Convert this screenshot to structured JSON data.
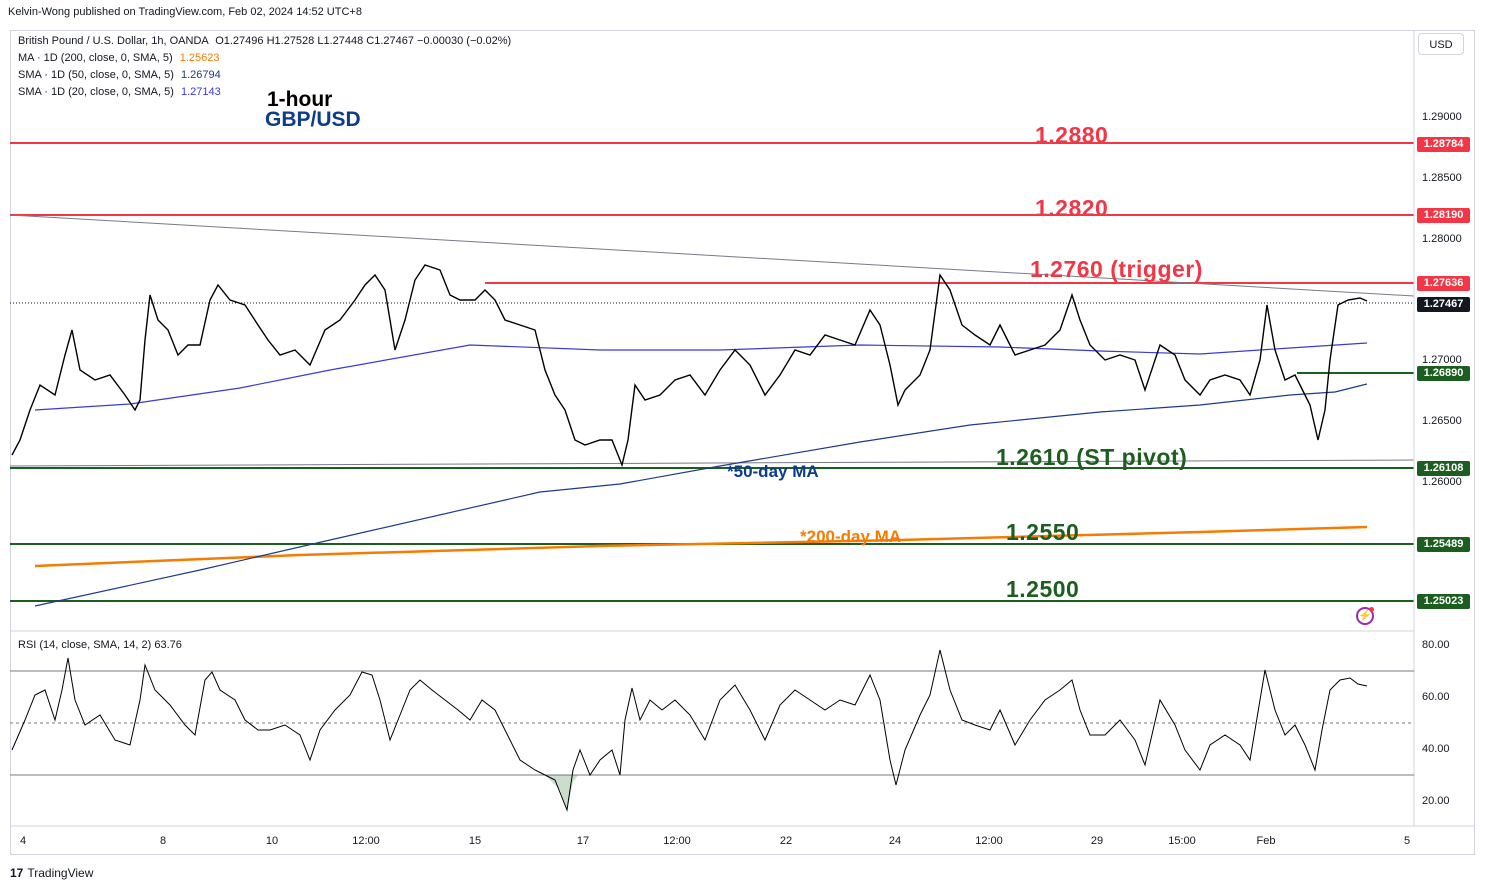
{
  "header": {
    "published": "Kelvin-Wong published on TradingView.com, Feb 02, 2024 14:52 UTC+8"
  },
  "legend": {
    "symbol": "British Pound / U.S. Dollar, 1h, OANDA",
    "ohlc": "O1.27496  H1.27528  L1.27448  C1.27467  −0.00030 (−0.02%)",
    "ma200_label": "MA · 1D (200, close, 0, SMA, 5)",
    "ma200_value": "1.25623",
    "sma50_label": "SMA · 1D (50, close, 0, SMA, 5)",
    "sma50_value": "1.26794",
    "sma20_label": "SMA · 1D (20, close, 0, SMA, 5)",
    "sma20_value": "1.27143"
  },
  "titles": {
    "timeframe": "1-hour",
    "pair": "GBP/USD"
  },
  "levels": {
    "r3": "1.2880",
    "r2": "1.2820",
    "r1": "1.2760 (trigger)",
    "s1": "1.2610 (ST pivot)",
    "s2": "1.2550",
    "s3": "1.2500"
  },
  "annotations": {
    "ma50": "*50-day MA",
    "ma200": "*200-day MA"
  },
  "price_axis": {
    "currency": "USD",
    "ticks": [
      "1.29000",
      "1.28500",
      "1.28000",
      "1.27000",
      "1.26500",
      "1.26000"
    ],
    "boxes": {
      "r3": "1.28784",
      "r2": "1.28190",
      "r1": "1.27636",
      "last": "1.27467",
      "mid": "1.26890",
      "s1": "1.26108",
      "s2": "1.25489",
      "s3": "1.25023"
    }
  },
  "rsi": {
    "label": "RSI (14, close, SMA, 14, 2)",
    "value": "63.76",
    "ticks": [
      "80.00",
      "60.00",
      "40.00",
      "20.00"
    ]
  },
  "time_axis": {
    "ticks": [
      "4",
      "8",
      "10",
      "12:00",
      "15",
      "17",
      "12:00",
      "22",
      "24",
      "12:00",
      "29",
      "15:00",
      "Feb",
      "5"
    ]
  },
  "footer": {
    "brand": "TradingView"
  },
  "colors": {
    "resistance": "#f23645",
    "support": "#1b5e20",
    "ma200": "#f57c00",
    "ma50": "#1e3a8a",
    "ma20": "#3a3ad6",
    "candle": "#000000"
  },
  "chart_data": {
    "type": "candlestick",
    "title": "British Pound / U.S. Dollar, 1h, OANDA",
    "y_range": [
      1.2485,
      1.2935
    ],
    "horizontal_levels": [
      1.288,
      1.282,
      1.276,
      1.261,
      1.255,
      1.25
    ],
    "close_path": [
      {
        "t": "Jan 3",
        "y": 1.262
      },
      {
        "t": "Jan 4",
        "y": 1.268
      },
      {
        "t": "Jan 5",
        "y": 1.269
      },
      {
        "t": "Jan 6",
        "y": 1.266
      },
      {
        "t": "Jan 8",
        "y": 1.273
      },
      {
        "t": "Jan 9",
        "y": 1.271
      },
      {
        "t": "Jan 10",
        "y": 1.274
      },
      {
        "t": "Jan 11",
        "y": 1.27
      },
      {
        "t": "Jan 12",
        "y": 1.275
      },
      {
        "t": "Jan 13",
        "y": 1.276
      },
      {
        "t": "Jan 14",
        "y": 1.271
      },
      {
        "t": "Jan 15",
        "y": 1.277
      },
      {
        "t": "Jan 16",
        "y": 1.274
      },
      {
        "t": "Jan 17",
        "y": 1.268
      },
      {
        "t": "Jan 17",
        "y": 1.264
      },
      {
        "t": "Jan 18",
        "y": 1.262
      },
      {
        "t": "Jan 19",
        "y": 1.268
      },
      {
        "t": "Jan 20",
        "y": 1.27
      },
      {
        "t": "Jan 22",
        "y": 1.271
      },
      {
        "t": "Jan 23",
        "y": 1.273
      },
      {
        "t": "Jan 24",
        "y": 1.266
      },
      {
        "t": "Jan 24",
        "y": 1.27
      },
      {
        "t": "Jan 25",
        "y": 1.2765
      },
      {
        "t": "Jan 26",
        "y": 1.272
      },
      {
        "t": "Jan 27",
        "y": 1.271
      },
      {
        "t": "Jan 29",
        "y": 1.274
      },
      {
        "t": "Jan 30",
        "y": 1.27
      },
      {
        "t": "Jan 31",
        "y": 1.271
      },
      {
        "t": "Jan 31",
        "y": 1.267
      },
      {
        "t": "Feb 1",
        "y": 1.275
      },
      {
        "t": "Feb 1",
        "y": 1.263
      },
      {
        "t": "Feb 2",
        "y": 1.274
      },
      {
        "t": "Feb 2",
        "y": 1.27467
      }
    ],
    "ma200_path": [
      {
        "t": "Jan 3",
        "y": 1.2532
      },
      {
        "t": "Feb 2",
        "y": 1.2562
      }
    ],
    "sma50_path": [
      {
        "t": "Jan 3",
        "y": 1.2495
      },
      {
        "t": "Jan 17",
        "y": 1.259
      },
      {
        "t": "Jan 25",
        "y": 1.2645
      },
      {
        "t": "Feb 2",
        "y": 1.2679
      }
    ],
    "sma20_path": [
      {
        "t": "Jan 3",
        "y": 1.266
      },
      {
        "t": "Jan 15",
        "y": 1.2712
      },
      {
        "t": "Jan 25",
        "y": 1.2711
      },
      {
        "t": "Feb 2",
        "y": 1.2714
      }
    ],
    "rsi_path": [
      {
        "t": "Jan 3",
        "y": 45
      },
      {
        "t": "Jan 4",
        "y": 70
      },
      {
        "t": "Jan 5",
        "y": 55
      },
      {
        "t": "Jan 6",
        "y": 38
      },
      {
        "t": "Jan 8",
        "y": 72
      },
      {
        "t": "Jan 9",
        "y": 45
      },
      {
        "t": "Jan 10",
        "y": 68
      },
      {
        "t": "Jan 11",
        "y": 40
      },
      {
        "t": "Jan 12",
        "y": 65
      },
      {
        "t": "Jan 13",
        "y": 70
      },
      {
        "t": "Jan 14",
        "y": 40
      },
      {
        "t": "Jan 15",
        "y": 72
      },
      {
        "t": "Jan 16",
        "y": 55
      },
      {
        "t": "Jan 17",
        "y": 18
      },
      {
        "t": "Jan 18",
        "y": 32
      },
      {
        "t": "Jan 19",
        "y": 68
      },
      {
        "t": "Jan 20",
        "y": 55
      },
      {
        "t": "Jan 22",
        "y": 62
      },
      {
        "t": "Jan 23",
        "y": 58
      },
      {
        "t": "Jan 24",
        "y": 28
      },
      {
        "t": "Jan 25",
        "y": 76
      },
      {
        "t": "Jan 26",
        "y": 45
      },
      {
        "t": "Jan 27",
        "y": 58
      },
      {
        "t": "Jan 29",
        "y": 60
      },
      {
        "t": "Jan 30",
        "y": 40
      },
      {
        "t": "Jan 31",
        "y": 32
      },
      {
        "t": "Feb 1",
        "y": 70
      },
      {
        "t": "Feb 1",
        "y": 32
      },
      {
        "t": "Feb 2",
        "y": 68
      },
      {
        "t": "Feb 2",
        "y": 63.76
      }
    ],
    "rsi_levels": [
      70,
      50,
      30
    ]
  }
}
